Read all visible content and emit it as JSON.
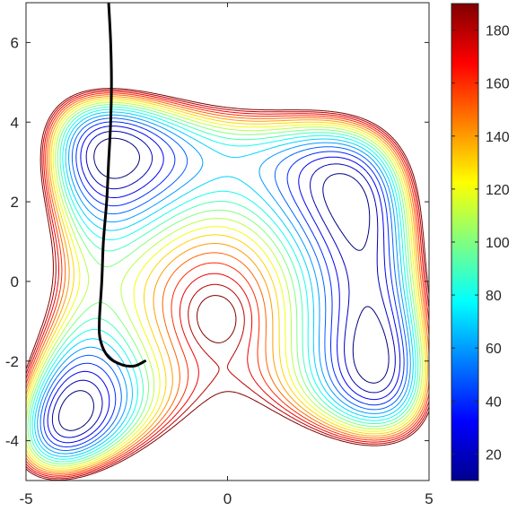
{
  "chart_data": {
    "type": "contour",
    "title": "",
    "xlabel": "",
    "ylabel": "",
    "xlim": [
      -5,
      5
    ],
    "ylim": [
      -5,
      7
    ],
    "x_ticks": [
      -5,
      0,
      5
    ],
    "x_tick_labels": [
      "-5",
      "0",
      "5"
    ],
    "y_ticks": [
      -4,
      -2,
      0,
      2,
      4,
      6
    ],
    "y_tick_labels": [
      "-4",
      "-2",
      "0",
      "2",
      "4",
      "6"
    ],
    "grid": false,
    "colormap": "jet",
    "colorbar": {
      "range": [
        10,
        190
      ],
      "ticks": [
        20,
        40,
        60,
        80,
        100,
        120,
        140,
        160,
        180
      ],
      "tick_labels": [
        "20",
        "40",
        "60",
        "80",
        "100",
        "120",
        "140",
        "160",
        "180"
      ]
    },
    "contour_levels": [
      10,
      20,
      30,
      40,
      50,
      60,
      70,
      80,
      90,
      100,
      110,
      120,
      130,
      140,
      150,
      160,
      170,
      180,
      190
    ],
    "minima": [
      {
        "x": -2.8,
        "y": 3.1
      },
      {
        "x": -3.78,
        "y": -3.28
      },
      {
        "x": 3.0,
        "y": 2.0
      },
      {
        "x": 3.58,
        "y": -1.85
      },
      {
        "x": -0.27,
        "y": -0.92
      }
    ],
    "path": {
      "color": "#000000",
      "points": [
        [
          -2.95,
          7.0
        ],
        [
          -2.9,
          6.0
        ],
        [
          -2.88,
          5.0
        ],
        [
          -2.9,
          4.0
        ],
        [
          -2.95,
          3.0
        ],
        [
          -3.0,
          2.0
        ],
        [
          -3.08,
          1.0
        ],
        [
          -3.12,
          0.0
        ],
        [
          -3.18,
          -1.0
        ],
        [
          -3.15,
          -1.5
        ],
        [
          -2.95,
          -1.9
        ],
        [
          -2.6,
          -2.1
        ],
        [
          -2.3,
          -2.12
        ],
        [
          -2.05,
          -2.0
        ]
      ]
    }
  }
}
